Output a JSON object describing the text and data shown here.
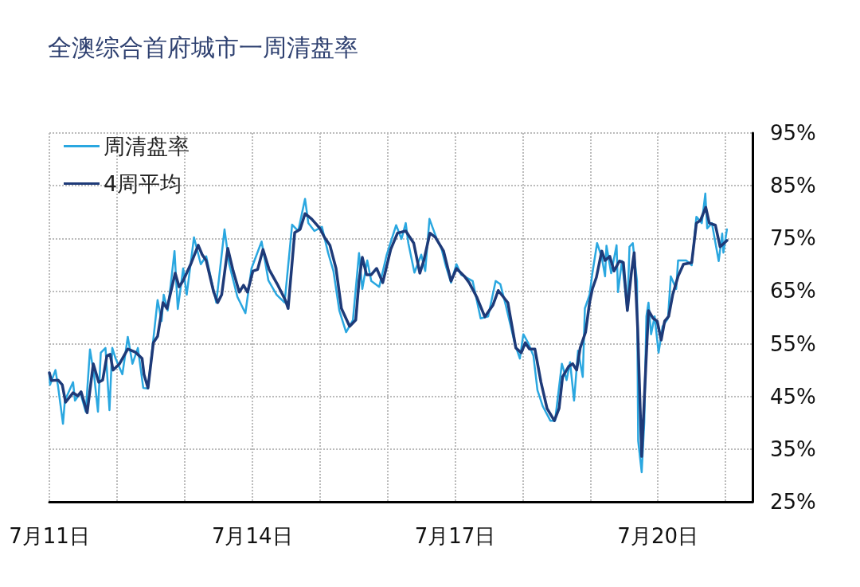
{
  "chart_data": {
    "type": "line",
    "title": "全澳综合首府城市一周清盘率",
    "xlim": [
      "--07-11",
      "--07-21T09:35"
    ],
    "xticks": [
      {
        "value": "--07-11",
        "label": "7月11日"
      },
      {
        "value": "--07-12",
        "label": null
      },
      {
        "value": "--07-13",
        "label": null
      },
      {
        "value": "--07-14",
        "label": "7月14日"
      },
      {
        "value": "--07-15",
        "label": null
      },
      {
        "value": "--07-16",
        "label": null
      },
      {
        "value": "--07-17",
        "label": "7月17日"
      },
      {
        "value": "--07-18",
        "label": null
      },
      {
        "value": "--07-19",
        "label": null
      },
      {
        "value": "--07-20",
        "label": "7月20日"
      },
      {
        "value": "--07-21",
        "label": null
      }
    ],
    "ylim": [
      25,
      95
    ],
    "yticks": [
      {
        "value": 25,
        "label": "25%"
      },
      {
        "value": 35,
        "label": "35%"
      },
      {
        "value": 45,
        "label": "45%"
      },
      {
        "value": 55,
        "label": "55%"
      },
      {
        "value": 65,
        "label": "65%"
      },
      {
        "value": 75,
        "label": "75%"
      },
      {
        "value": 85,
        "label": "85%"
      },
      {
        "value": 95,
        "label": "95%"
      }
    ],
    "grid": true,
    "legend": "top left",
    "marker": "none",
    "line_style": "solid",
    "series": [
      {
        "name": "周清盘率",
        "color": "#2aa7e0",
        "x": [
          "--07-11T00:00",
          "--07-11T00:15",
          "--07-11T02:10",
          "--07-11T03:05",
          "--07-11T04:50",
          "--07-11T05:30",
          "--07-11T08:25",
          "--07-11T09:05",
          "--07-11T11:00",
          "--07-11T12:55",
          "--07-11T14:25",
          "--07-11T15:50",
          "--07-11T17:15",
          "--07-11T18:15",
          "--07-11T19:55",
          "--07-11T21:20",
          "--07-11T22:20",
          "--07-11T23:30",
          "--07-12T01:55",
          "--07-12T03:50",
          "--07-12T05:30",
          "--07-12T07:25",
          "--07-12T09:20",
          "--07-12T11:00",
          "--07-12T14:25",
          "--07-12T15:50",
          "--07-12T16:35",
          "--07-12T18:00",
          "--07-12T19:25",
          "--07-12T20:25",
          "--07-12T21:35",
          "--07-12T23:30",
          "--07-13T00:45",
          "--07-13T03:20",
          "--07-13T05:45",
          "--07-13T07:40",
          "--07-13T11:15",
          "--07-13T14:10",
          "--07-13T15:50",
          "--07-13T18:45",
          "--07-13T21:35",
          "--07-13T23:45",
          "--07-14T03:20",
          "--07-14T05:45",
          "--07-14T08:40",
          "--07-14T11:30",
          "--07-14T14:10",
          "--07-14T16:20",
          "--07-14T18:45",
          "--07-14T19:55",
          "--07-14T22:05",
          "--07-15T00:45",
          "--07-15T02:55",
          "--07-15T04:50",
          "--07-15T06:55",
          "--07-15T09:20",
          "--07-15T11:45",
          "--07-15T13:55",
          "--07-15T15:05",
          "--07-15T16:50",
          "--07-15T18:15",
          "--07-15T21:05",
          "--07-15T23:45",
          "--07-16T03:05",
          "--07-16T05:00",
          "--07-16T06:30",
          "--07-16T07:25",
          "--07-16T09:35",
          "--07-16T12:00",
          "--07-16T13:25",
          "--07-16T14:55",
          "--07-16T17:30",
          "--07-16T19:10",
          "--07-16T20:40",
          "--07-16T22:35",
          "--07-17T00:30",
          "--07-17T02:10",
          "--07-17T06:15",
          "--07-17T09:05",
          "--07-17T11:45",
          "--07-17T14:25",
          "--07-17T16:05",
          "--07-17T18:00",
          "--07-17T21:20",
          "--07-17T23:00",
          "--07-18T00:15",
          "--07-18T01:55",
          "--07-18T03:50",
          "--07-18T05:15",
          "--07-18T07:10",
          "--07-18T09:50",
          "--07-18T11:30",
          "--07-18T13:55",
          "--07-18T15:35",
          "--07-18T16:50",
          "--07-18T18:15",
          "--07-18T19:40",
          "--07-18T21:20",
          "--07-18T22:05",
          "--07-18T23:45",
          "--07-19T00:45",
          "--07-19T02:25",
          "--07-19T04:05",
          "--07-19T05:15",
          "--07-19T05:45",
          "--07-19T07:25",
          "--07-19T09:20",
          "--07-19T09:50",
          "--07-19T11:15",
          "--07-19T13:10",
          "--07-19T13:55",
          "--07-19T15:05",
          "--07-19T16:35",
          "--07-19T17:00",
          "--07-19T18:15",
          "--07-19T19:10",
          "--07-19T19:55",
          "--07-19T20:40",
          "--07-19T21:35",
          "--07-19T22:50",
          "--07-20T00:15",
          "--07-20T01:40",
          "--07-20T03:35",
          "--07-20T04:35",
          "--07-20T06:30",
          "--07-20T07:10",
          "--07-20T10:05",
          "--07-20T12:00",
          "--07-20T13:40",
          "--07-20T15:35",
          "--07-20T16:50",
          "--07-20T17:30",
          "--07-20T19:10",
          "--07-20T21:35",
          "--07-20T22:50",
          "--07-20T23:15",
          "--07-21T00:30"
        ],
        "values": [
          49.2,
          47.2,
          50.0,
          46.9,
          39.8,
          44.2,
          47.7,
          44.2,
          45.7,
          42.1,
          53.9,
          49.2,
          42.1,
          53.3,
          54.2,
          42.4,
          54.2,
          52.2,
          49.2,
          56.3,
          51.2,
          54.2,
          46.6,
          46.5,
          63.3,
          59.3,
          64.3,
          61.3,
          67.8,
          72.6,
          61.6,
          69.3,
          64.3,
          75.2,
          70.1,
          71.6,
          62.8,
          76.7,
          70.1,
          63.9,
          60.8,
          69.3,
          74.4,
          67.0,
          64.3,
          62.8,
          77.6,
          76.4,
          82.5,
          77.9,
          76.4,
          77.2,
          72.3,
          68.8,
          61.3,
          57.2,
          59.5,
          72.2,
          65.4,
          70.8,
          66.9,
          65.8,
          71.9,
          77.5,
          74.9,
          77.9,
          74.1,
          68.5,
          71.9,
          68.8,
          78.7,
          74.9,
          73.1,
          69.9,
          66.6,
          70.1,
          68.1,
          66.9,
          59.8,
          60.2,
          66.9,
          66.3,
          62.3,
          54.8,
          52.2,
          56.8,
          55.2,
          52.7,
          46.2,
          43.1,
          40.4,
          40.4,
          51.2,
          48.1,
          51.5,
          44.2,
          53.7,
          48.7,
          61.7,
          64.3,
          68.4,
          74.1,
          71.4,
          67.8,
          73.6,
          68.4,
          73.7,
          64.8,
          70.7,
          61.3,
          73.4,
          74.1,
          66.9,
          36.6,
          30.6,
          40.1,
          60.2,
          62.8,
          56.8,
          60.2,
          53.3,
          58.3,
          59.8,
          67.8,
          65.4,
          70.8,
          70.8,
          69.9,
          79.1,
          77.9,
          83.5,
          76.9,
          77.9,
          70.7,
          75.9,
          72.3,
          76.7
        ]
      },
      {
        "name": "4周平均",
        "color": "#1e3a78",
        "x": [
          "--07-11T00:00",
          "--07-11T00:45",
          "--07-11T03:05",
          "--07-11T04:35",
          "--07-11T05:45",
          "--07-11T08:25",
          "--07-11T10:05",
          "--07-11T11:15",
          "--07-11T13:25",
          "--07-11T15:35",
          "--07-11T17:30",
          "--07-11T18:55",
          "--07-11T20:25",
          "--07-11T21:35",
          "--07-11T22:35",
          "--07-12T00:55",
          "--07-12T03:50",
          "--07-12T06:30",
          "--07-12T08:55",
          "--07-12T09:35",
          "--07-12T11:00",
          "--07-12T12:55",
          "--07-12T14:25",
          "--07-12T16:20",
          "--07-12T17:45",
          "--07-12T20:40",
          "--07-12T22:05",
          "--07-12T23:30",
          "--07-13T02:25",
          "--07-13T04:50",
          "--07-13T06:15",
          "--07-13T07:40",
          "--07-13T10:20",
          "--07-13T11:45",
          "--07-13T13:10",
          "--07-13T15:20",
          "--07-13T17:15",
          "--07-13T19:25",
          "--07-13T20:55",
          "--07-13T22:20",
          "--07-14T00:15",
          "--07-14T01:55",
          "--07-14T03:50",
          "--07-14T06:00",
          "--07-14T08:55",
          "--07-14T11:45",
          "--07-14T12:45",
          "--07-14T15:05",
          "--07-14T17:00",
          "--07-14T18:45",
          "--07-14T21:05",
          "--07-15T00:00",
          "--07-15T01:40",
          "--07-15T03:35",
          "--07-15T05:45",
          "--07-15T07:40",
          "--07-15T10:35",
          "--07-15T12:45",
          "--07-15T13:55",
          "--07-15T15:05",
          "--07-15T16:35",
          "--07-15T18:15",
          "--07-15T20:10",
          "--07-15T22:20",
          "--07-16T01:10",
          "--07-16T03:35",
          "--07-16T06:30",
          "--07-16T09:20",
          "--07-16T11:30",
          "--07-16T12:55",
          "--07-16T15:05",
          "--07-16T17:00",
          "--07-16T19:55",
          "--07-16T22:35",
          "--07-17T00:30",
          "--07-17T03:20",
          "--07-17T05:00",
          "--07-17T07:40",
          "--07-17T10:35",
          "--07-17T13:25",
          "--07-17T15:20",
          "--07-17T18:45",
          "--07-17T21:35",
          "--07-17T23:30",
          "--07-18T00:55",
          "--07-18T02:25",
          "--07-18T04:20",
          "--07-18T06:30",
          "--07-18T08:40",
          "--07-18T11:15",
          "--07-18T12:55",
          "--07-18T14:10",
          "--07-18T16:20",
          "--07-18T17:45",
          "--07-18T19:10",
          "--07-18T20:25",
          "--07-18T22:20",
          "--07-18T23:45",
          "--07-19T00:45",
          "--07-19T02:10",
          "--07-19T04:05",
          "--07-19T05:15",
          "--07-19T06:55",
          "--07-19T08:25",
          "--07-19T10:20",
          "--07-19T11:45",
          "--07-19T13:10",
          "--07-19T14:40",
          "--07-19T15:35",
          "--07-19T16:50",
          "--07-19T18:15",
          "--07-19T19:40",
          "--07-19T20:40",
          "--07-19T22:20",
          "--07-19T23:45",
          "--07-20T01:10",
          "--07-20T02:25",
          "--07-20T03:50",
          "--07-20T05:15",
          "--07-20T07:10",
          "--07-20T09:05",
          "--07-20T12:00",
          "--07-20T13:40",
          "--07-20T15:05",
          "--07-20T17:00",
          "--07-20T18:15",
          "--07-20T20:25",
          "--07-20T22:05",
          "--07-21T00:30"
        ],
        "values": [
          49.5,
          48.0,
          48.1,
          47.2,
          43.9,
          45.7,
          45.1,
          45.9,
          41.9,
          51.2,
          47.7,
          48.1,
          52.7,
          53.0,
          50.0,
          51.2,
          54.0,
          53.4,
          52.2,
          49.2,
          46.6,
          55.2,
          56.4,
          62.8,
          61.7,
          68.4,
          65.8,
          67.0,
          70.4,
          73.7,
          71.9,
          70.8,
          64.8,
          62.8,
          64.3,
          73.1,
          68.8,
          64.8,
          66.1,
          64.8,
          68.8,
          69.1,
          72.9,
          69.1,
          66.3,
          63.3,
          61.7,
          76.1,
          76.7,
          79.7,
          78.7,
          76.9,
          75.2,
          73.7,
          69.3,
          61.7,
          58.3,
          59.5,
          66.9,
          71.4,
          68.1,
          68.1,
          69.3,
          66.6,
          72.9,
          76.0,
          76.4,
          74.1,
          68.4,
          70.8,
          76.0,
          75.2,
          72.6,
          66.9,
          69.3,
          67.8,
          66.6,
          63.9,
          60.1,
          62.3,
          65.1,
          62.8,
          54.2,
          53.3,
          55.2,
          54.0,
          54.0,
          47.7,
          42.7,
          40.4,
          42.7,
          48.7,
          50.7,
          51.2,
          50.0,
          54.2,
          57.2,
          62.8,
          65.4,
          67.6,
          72.6,
          70.8,
          71.6,
          68.8,
          70.7,
          70.4,
          61.3,
          68.8,
          72.3,
          57.8,
          33.6,
          50.2,
          61.3,
          59.8,
          59.3,
          55.7,
          59.3,
          60.2,
          64.3,
          67.8,
          70.1,
          70.4,
          77.9,
          78.4,
          80.9,
          77.9,
          77.5,
          73.4,
          74.6
        ]
      }
    ]
  }
}
